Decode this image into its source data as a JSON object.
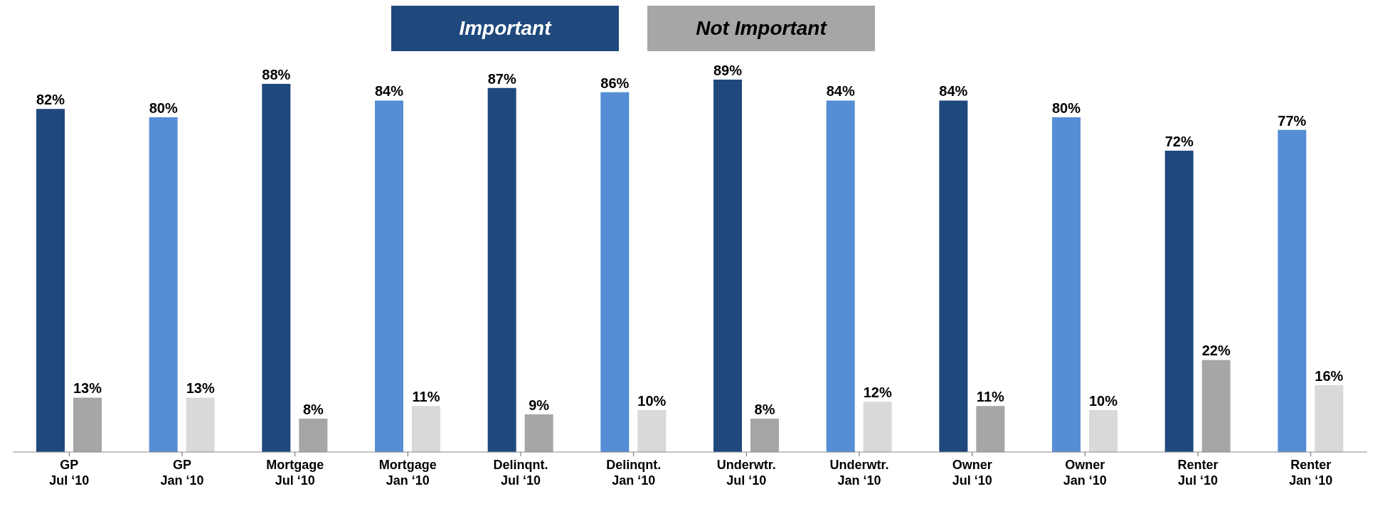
{
  "chart_data": {
    "type": "bar",
    "categories": [
      "GP\nJul ‘10",
      "GP\nJan ‘10",
      "Mortgage\nJul ‘10",
      "Mortgage\nJan ‘10",
      "Delinqnt.\nJul ‘10",
      "Delinqnt.\nJan ‘10",
      "Underwtr.\nJul ‘10",
      "Underwtr.\nJan ‘10",
      "Owner\nJul ‘10",
      "Owner\nJan ‘10",
      "Renter\nJul ‘10",
      "Renter\nJan ‘10"
    ],
    "series": [
      {
        "name": "Important",
        "color": "#1f497d",
        "colors": [
          "#1f497d",
          "#558ed5",
          "#1f497d",
          "#558ed5",
          "#1f497d",
          "#558ed5",
          "#1f497d",
          "#558ed5",
          "#1f497d",
          "#558ed5",
          "#1f497d",
          "#558ed5"
        ],
        "values": [
          82,
          80,
          88,
          84,
          87,
          86,
          89,
          84,
          84,
          80,
          72,
          77
        ],
        "value_labels": [
          "82%",
          "80%",
          "88%",
          "84%",
          "87%",
          "86%",
          "89%",
          "84%",
          "84%",
          "80%",
          "72%",
          "77%"
        ]
      },
      {
        "name": "Not Important",
        "color": "#a6a6a6",
        "colors": [
          "#a6a6a6",
          "#d9d9d9",
          "#a6a6a6",
          "#d9d9d9",
          "#a6a6a6",
          "#d9d9d9",
          "#a6a6a6",
          "#d9d9d9",
          "#a6a6a6",
          "#d9d9d9",
          "#a6a6a6",
          "#d9d9d9"
        ],
        "values": [
          13,
          13,
          8,
          11,
          9,
          10,
          8,
          12,
          11,
          10,
          22,
          16
        ],
        "value_labels": [
          "13%",
          "13%",
          "8%",
          "11%",
          "9%",
          "10%",
          "8%",
          "12%",
          "11%",
          "10%",
          "22%",
          "16%"
        ]
      }
    ],
    "legend": "top"
  }
}
